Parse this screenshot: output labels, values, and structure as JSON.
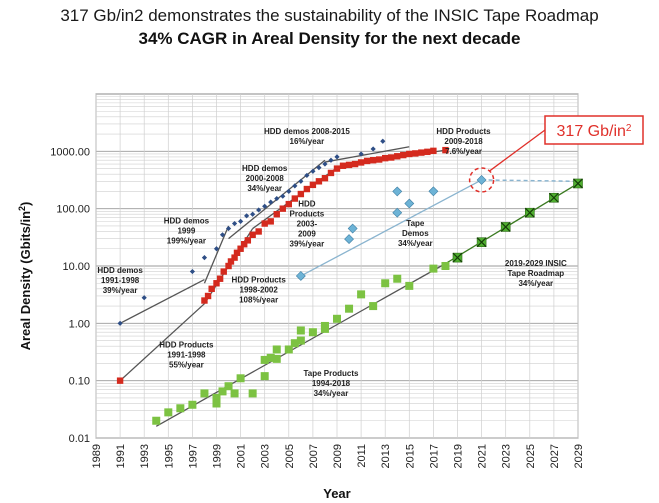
{
  "header": {
    "line1": "317 Gb/in2 demonstrates the sustainability of the INSIC Tape Roadmap",
    "line2": "34% CAGR in Areal Density for the next decade"
  },
  "chart_data": {
    "type": "scatter",
    "title": "317 Gb/in2 demonstrates the sustainability of the INSIC Tape Roadmap",
    "subtitle": "34% CAGR in Areal Density for the next decade",
    "xlabel": "Year",
    "ylabel_base": "Areal Density (Gbits/in",
    "ylabel_sup": "2",
    "ylabel_end": ")",
    "yscale": "log",
    "xlim": [
      1989,
      2029
    ],
    "ylim": [
      0.01,
      10000
    ],
    "x_ticks": [
      "1989",
      "1991",
      "1993",
      "1995",
      "1997",
      "1999",
      "2001",
      "2003",
      "2005",
      "2007",
      "2009",
      "2011",
      "2013",
      "2015",
      "2017",
      "2019",
      "2021",
      "2023",
      "2025",
      "2027",
      "2029"
    ],
    "y_ticks": [
      "0.01",
      "0.10",
      "1.00",
      "10.00",
      "100.00",
      "1000.00"
    ],
    "grid": true,
    "callout": {
      "text_base": "317 Gb/in",
      "text_sup": "2",
      "x": 2021,
      "y": 317,
      "color": "#e0302a"
    },
    "series": [
      {
        "name": "HDD demos",
        "marker": "diamond",
        "color": "#2e4e86",
        "points": [
          [
            1991,
            1.0
          ],
          [
            1993,
            2.8
          ],
          [
            1997,
            8
          ],
          [
            1998,
            14
          ],
          [
            1999,
            20
          ],
          [
            1999.5,
            35
          ],
          [
            2000,
            45
          ],
          [
            2000.5,
            55
          ],
          [
            2001,
            60
          ],
          [
            2001.5,
            75
          ],
          [
            2002,
            80
          ],
          [
            2002.5,
            95
          ],
          [
            2003,
            110
          ],
          [
            2003.5,
            130
          ],
          [
            2004,
            150
          ],
          [
            2004.5,
            165
          ],
          [
            2005,
            200
          ],
          [
            2005.5,
            250
          ],
          [
            2006,
            300
          ],
          [
            2006.5,
            380
          ],
          [
            2007,
            450
          ],
          [
            2007.5,
            520
          ],
          [
            2008,
            600
          ],
          [
            2008.5,
            700
          ],
          [
            2009,
            800
          ],
          [
            2011,
            900
          ],
          [
            2012,
            1100
          ],
          [
            2012.8,
            1500
          ]
        ]
      },
      {
        "name": "HDD Products",
        "marker": "square",
        "color": "#d42a1e",
        "points": [
          [
            1991,
            0.1
          ],
          [
            1998,
            2.5
          ],
          [
            1998.3,
            3
          ],
          [
            1998.6,
            4
          ],
          [
            1999,
            5
          ],
          [
            1999.3,
            6
          ],
          [
            1999.6,
            8
          ],
          [
            2000,
            10
          ],
          [
            2000.2,
            12
          ],
          [
            2000.5,
            14
          ],
          [
            2000.7,
            17
          ],
          [
            2001,
            20
          ],
          [
            2001.3,
            24
          ],
          [
            2001.6,
            28
          ],
          [
            2002,
            35
          ],
          [
            2002.5,
            40
          ],
          [
            2003,
            55
          ],
          [
            2003.5,
            60
          ],
          [
            2004,
            80
          ],
          [
            2004.5,
            100
          ],
          [
            2005,
            120
          ],
          [
            2005.5,
            150
          ],
          [
            2006,
            180
          ],
          [
            2006.5,
            220
          ],
          [
            2007,
            260
          ],
          [
            2007.5,
            300
          ],
          [
            2008,
            340
          ],
          [
            2008.5,
            420
          ],
          [
            2009,
            500
          ],
          [
            2009.5,
            560
          ],
          [
            2010,
            580
          ],
          [
            2010.5,
            600
          ],
          [
            2011,
            640
          ],
          [
            2011.5,
            680
          ],
          [
            2012,
            700
          ],
          [
            2012.5,
            720
          ],
          [
            2013,
            760
          ],
          [
            2013.5,
            780
          ],
          [
            2014,
            820
          ],
          [
            2014.5,
            860
          ],
          [
            2015,
            900
          ],
          [
            2015.5,
            920
          ],
          [
            2016,
            950
          ],
          [
            2016.5,
            980
          ],
          [
            2017,
            1020
          ],
          [
            2018,
            1050
          ]
        ]
      },
      {
        "name": "Tape Demos",
        "marker": "diamond",
        "color": "#6db3d6",
        "points": [
          [
            2006,
            6.7
          ],
          [
            2010,
            29.5
          ],
          [
            2010.3,
            45
          ],
          [
            2014,
            85
          ],
          [
            2014,
            200
          ],
          [
            2015,
            123
          ],
          [
            2017,
            201
          ],
          [
            2021,
            317
          ]
        ]
      },
      {
        "name": "Tape Products",
        "marker": "square",
        "color": "#7cc242",
        "points": [
          [
            1994,
            0.02
          ],
          [
            1995,
            0.028
          ],
          [
            1996,
            0.033
          ],
          [
            1997,
            0.038
          ],
          [
            1998,
            0.06
          ],
          [
            1999,
            0.04
          ],
          [
            1999,
            0.05
          ],
          [
            1999.5,
            0.065
          ],
          [
            2000,
            0.08
          ],
          [
            2000.5,
            0.06
          ],
          [
            2001,
            0.11
          ],
          [
            2002,
            0.06
          ],
          [
            2003,
            0.12
          ],
          [
            2003,
            0.23
          ],
          [
            2003.5,
            0.25
          ],
          [
            2004,
            0.24
          ],
          [
            2004,
            0.35
          ],
          [
            2005,
            0.35
          ],
          [
            2005.5,
            0.45
          ],
          [
            2006,
            0.75
          ],
          [
            2006,
            0.5
          ],
          [
            2007,
            0.7
          ],
          [
            2008,
            0.9
          ],
          [
            2008,
            0.8
          ],
          [
            2009,
            1.2
          ],
          [
            2010,
            1.8
          ],
          [
            2011,
            3.2
          ],
          [
            2012,
            2
          ],
          [
            2013,
            5
          ],
          [
            2014,
            6
          ],
          [
            2015,
            4.5
          ],
          [
            2017,
            9
          ],
          [
            2018,
            10
          ]
        ]
      },
      {
        "name": "2019-2029 INSIC Tape Roadmap",
        "marker": "square-x",
        "color": "#4fae2f",
        "points": [
          [
            2019,
            14
          ],
          [
            2021,
            26
          ],
          [
            2023,
            48
          ],
          [
            2025,
            85
          ],
          [
            2027,
            155
          ],
          [
            2029,
            275
          ]
        ]
      }
    ],
    "trend_lines": [
      {
        "name": "HDD demos 1991-1998",
        "color": "#555555",
        "from": [
          1991,
          1.0
        ],
        "to": [
          1998,
          5.8
        ]
      },
      {
        "name": "HDD demos 1999",
        "color": "#555555",
        "from": [
          1998,
          5
        ],
        "to": [
          2000,
          50
        ]
      },
      {
        "name": "HDD demos 2000-2008",
        "color": "#555555",
        "from": [
          2000,
          30
        ],
        "to": [
          2008,
          700
        ]
      },
      {
        "name": "HDD demos 2008-2015",
        "color": "#555555",
        "from": [
          2008,
          650
        ],
        "to": [
          2015,
          1200
        ]
      },
      {
        "name": "HDD Products 1991-1998",
        "color": "#555555",
        "from": [
          1991,
          0.1
        ],
        "to": [
          1998,
          2.2
        ]
      },
      {
        "name": "HDD Products 1998-2002",
        "color": "#555555",
        "from": [
          1998,
          2.2
        ],
        "to": [
          2002,
          45
        ]
      },
      {
        "name": "HDD Products 2003-2009",
        "color": "#555555",
        "from": [
          2002,
          45
        ],
        "to": [
          2009,
          520
        ]
      },
      {
        "name": "HDD Products 2009-2018",
        "color": "#555555",
        "from": [
          2009,
          520
        ],
        "to": [
          2018,
          1050
        ]
      },
      {
        "name": "Tape Demos",
        "color": "#8ab4cf",
        "from": [
          2006,
          6.7
        ],
        "to": [
          2021,
          317
        ]
      },
      {
        "name": "Tape Products 1994-2018",
        "color": "#555555",
        "from": [
          1994,
          0.016
        ],
        "to": [
          2018,
          11
        ]
      },
      {
        "name": "2019-2029 INSIC Tape Roadmap",
        "color": "#3a7a20",
        "from": [
          2018,
          11
        ],
        "to": [
          2029,
          275
        ]
      },
      {
        "name": "callout dashed",
        "color": "#8ab4cf",
        "dashed": true,
        "from": [
          2021,
          317
        ],
        "to": [
          2029,
          300
        ]
      }
    ],
    "annotations": [
      {
        "lines": [
          "HDD demos 2008-2015",
          "16%/year"
        ],
        "x": 2006.5,
        "y": 2000
      },
      {
        "lines": [
          "HDD demos",
          "2000-2008",
          "34%/year"
        ],
        "x": 2003,
        "y": 450
      },
      {
        "lines": [
          "HDD demos",
          "1999",
          "199%/year"
        ],
        "x": 1996.5,
        "y": 55
      },
      {
        "lines": [
          "HDD demos",
          "1991-1998",
          "39%/year"
        ],
        "x": 1991,
        "y": 7.5
      },
      {
        "lines": [
          "HDD",
          "Products",
          "2003-",
          "2009",
          "39%/year"
        ],
        "x": 2006.5,
        "y": 110
      },
      {
        "lines": [
          "HDD Products",
          "1998-2002",
          "108%/year"
        ],
        "x": 2002.5,
        "y": 5.2
      },
      {
        "lines": [
          "HDD Products",
          "1991-1998",
          "55%/year"
        ],
        "x": 1996.5,
        "y": 0.38
      },
      {
        "lines": [
          "HDD Products",
          "2009-2018",
          "7.6%/year"
        ],
        "x": 2019.5,
        "y": 2000
      },
      {
        "lines": [
          "Tape",
          "Demos",
          "34%/year"
        ],
        "x": 2015.5,
        "y": 50
      },
      {
        "lines": [
          "Tape Products",
          "1994-2018",
          "34%/year"
        ],
        "x": 2008.5,
        "y": 0.12
      },
      {
        "lines": [
          "2019-2029 INSIC",
          "Tape Roadmap",
          "34%/year"
        ],
        "x": 2025.5,
        "y": 10
      }
    ]
  }
}
